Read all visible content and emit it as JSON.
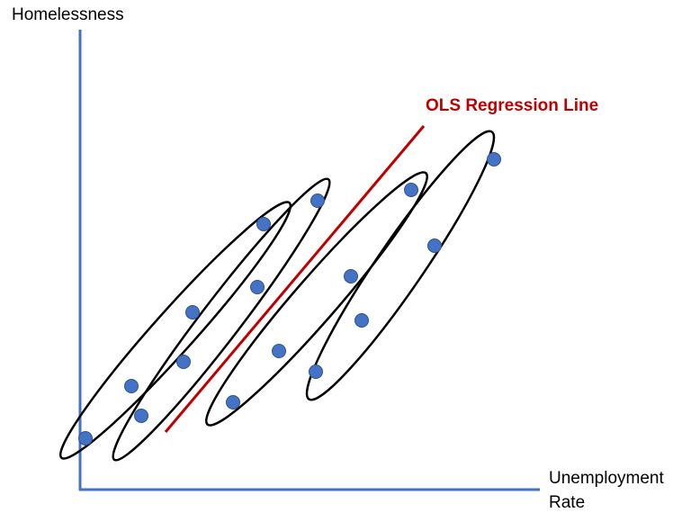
{
  "labels": {
    "y_axis": "Homelessness",
    "x_axis_line1": "Unemployment",
    "x_axis_line2": "Rate",
    "regression": "OLS Regression Line"
  },
  "colors": {
    "axis": "#4472c4",
    "point_fill": "#4472c4",
    "point_stroke": "#2f528f",
    "regression": "#c00000",
    "ellipse": "#000000",
    "text": "#000000"
  }
}
